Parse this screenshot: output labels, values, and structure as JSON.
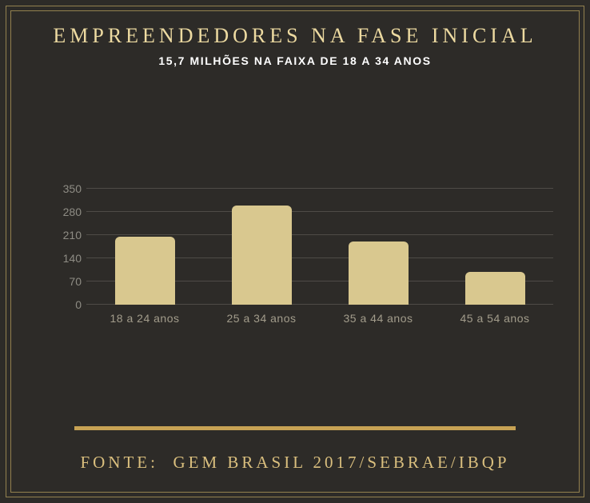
{
  "header": {
    "title": "EMPREENDEDORES NA FASE INICIAL",
    "subtitle": "15,7 MILHÕES NA FAIXA DE 18 A 34 ANOS"
  },
  "footer": {
    "source": "FONTE:  GEM BRASIL 2017/SEBRAE/IBQP"
  },
  "colors": {
    "background": "#2d2b28",
    "frame": "#93814f",
    "title": "#eddaa1",
    "subtitle": "#ffffff",
    "bar": "#d9c88f",
    "gridline": "#4e4b47",
    "tick_label": "#8e8c84",
    "category_label": "#a29c8b",
    "divider": "#c7a254",
    "footer_text": "#dabf7e"
  },
  "chart_data": {
    "type": "bar",
    "categories": [
      "18 a 24 anos",
      "25 a 34 anos",
      "35 a 44 anos",
      "45 a 54 anos"
    ],
    "values": [
      205,
      300,
      190,
      100
    ],
    "title": "EMPREENDEDORES NA FASE INICIAL",
    "subtitle": "15,7 MILHÕES NA FAIXA DE 18 A 34 ANOS",
    "xlabel": "",
    "ylabel": "",
    "ylim": [
      0,
      350
    ],
    "yticks": [
      350,
      280,
      210,
      140,
      70,
      0
    ],
    "grid": true,
    "legend": false,
    "source": "FONTE:  GEM BRASIL 2017/SEBRAE/IBQP"
  }
}
